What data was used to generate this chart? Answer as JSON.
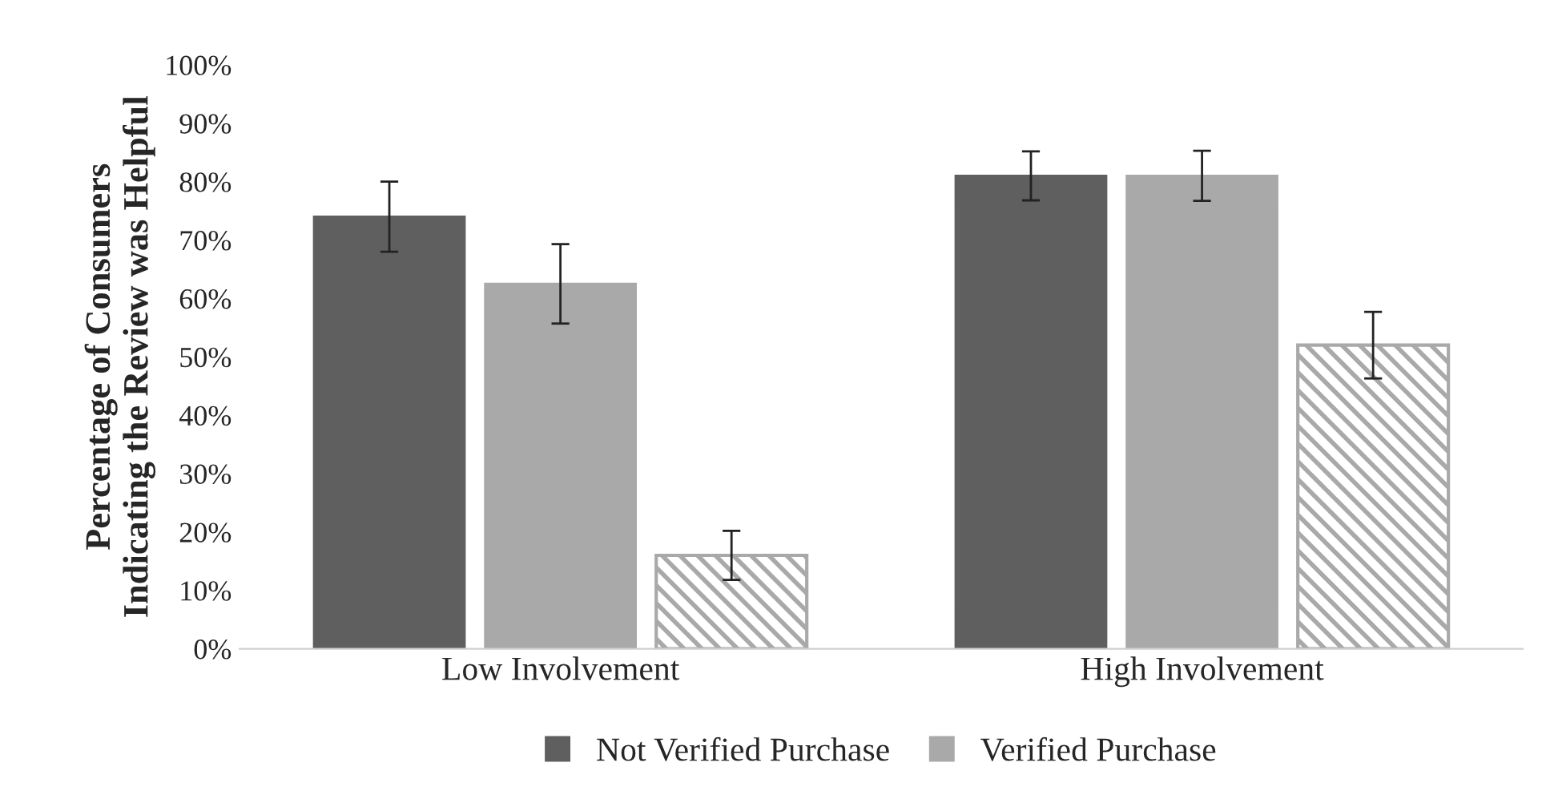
{
  "chart_data": {
    "type": "bar",
    "ylabel": "Percentage of Consumers\nIndicating the Review was Helpful",
    "categories": [
      "Low Involvement",
      "High Involvement"
    ],
    "series": [
      {
        "name": "Not Verified Purchase",
        "color": "#5f5f5f",
        "values": [
          74,
          81
        ],
        "errors": [
          6,
          4.2
        ]
      },
      {
        "name": "Verified Purchase",
        "color": "#a9a9a9",
        "values": [
          62.5,
          81
        ],
        "errors": [
          6.8,
          4.3
        ]
      },
      {
        "color": "#a9a9a9",
        "values": [
          16,
          52
        ],
        "errors": [
          4.2,
          5.7
        ]
      }
    ],
    "ylim": [
      0,
      100
    ],
    "yticks": [
      {
        "value": 0,
        "label": "0%"
      },
      {
        "value": 10,
        "label": "10%"
      },
      {
        "value": 20,
        "label": "20%"
      },
      {
        "value": 30,
        "label": "30%"
      },
      {
        "value": 40,
        "label": "40%"
      },
      {
        "value": 50,
        "label": "50%"
      },
      {
        "value": 60,
        "label": "60%"
      },
      {
        "value": 70,
        "label": "70%"
      },
      {
        "value": 80,
        "label": "80%"
      },
      {
        "value": 90,
        "label": "90%"
      },
      {
        "value": 100,
        "label": "100%"
      }
    ],
    "grid": false,
    "legend": "bottom"
  }
}
